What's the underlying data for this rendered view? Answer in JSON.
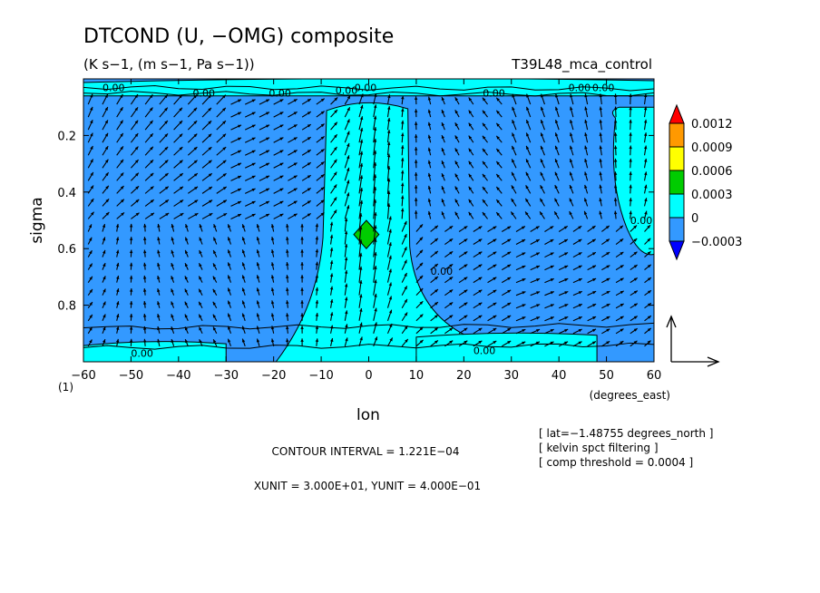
{
  "chart_data": {
    "type": "heatmap",
    "title": "DTCOND (U, −OMG) composite",
    "subtitle": "(K s−1, (m s−1, Pa s−1))",
    "experiment": "T39L48_mca_control",
    "xlabel": "lon",
    "x_unit_label": "(degrees_east)",
    "ylabel": "sigma",
    "y_corner_label": "(1)",
    "xlim": [
      -60,
      60
    ],
    "ylim": [
      0.0,
      1.0
    ],
    "y_inverted": true,
    "x_ticks": [
      -60,
      -50,
      -40,
      -30,
      -20,
      -10,
      0,
      10,
      20,
      30,
      40,
      50,
      60
    ],
    "x_tick_labels": [
      "−60",
      "−50",
      "−40",
      "−30",
      "−20",
      "−10",
      "0",
      "10",
      "20",
      "30",
      "40",
      "50",
      "60"
    ],
    "y_ticks": [
      0.2,
      0.4,
      0.6,
      0.8
    ],
    "y_tick_labels": [
      "0.2",
      "0.4",
      "0.6",
      "0.8"
    ],
    "colorbar": {
      "levels": [
        "0.0012",
        "0.0009",
        "0.0006",
        "0.0003",
        "0",
        "−0.0003"
      ],
      "colors": [
        "#ff0000",
        "#ff9900",
        "#ffff00",
        "#00cc00",
        "#00ffff",
        "#3399ff",
        "#0000ff"
      ]
    },
    "contour_labels": [
      "0.00",
      "0.00",
      "0.00",
      "0.00",
      "0.00",
      "0.00",
      "0.00",
      "0.00",
      "0.00",
      "0.00",
      "0.00",
      "0.00"
    ],
    "fill_colors": {
      "negative": "#3399ff",
      "near_zero": "#00ffff",
      "positive": "#00cc00"
    },
    "positive_regions": [
      {
        "lon": [
          -10,
          9
        ],
        "sigma": [
          0.08,
          1.0
        ],
        "level": "near_zero"
      },
      {
        "lon": [
          -2,
          1
        ],
        "sigma": [
          0.5,
          0.6
        ],
        "level": "positive"
      },
      {
        "lon": [
          -60,
          -30
        ],
        "sigma": [
          0.93,
          1.0
        ],
        "level": "near_zero"
      },
      {
        "lon": [
          10,
          48
        ],
        "sigma": [
          0.9,
          1.0
        ],
        "level": "near_zero"
      },
      {
        "lon": [
          50,
          60
        ],
        "sigma": [
          0.1,
          0.62
        ],
        "level": "near_zero"
      },
      {
        "lon": [
          -60,
          60
        ],
        "sigma": [
          0.0,
          0.06
        ],
        "level": "near_zero"
      }
    ],
    "vector_reference": {
      "x_arrow": "XUNIT",
      "y_arrow": "YUNIT"
    },
    "contour_interval_text": "CONTOUR INTERVAL = 1.221E−04",
    "unit_text": "XUNIT = 3.000E+01, YUNIT = 4.000E−01",
    "notes": [
      "[ lat=−1.48755 degrees_north ]",
      "[ kelvin spct filtering ]",
      "[ comp threshold = 0.0004 ]"
    ]
  }
}
